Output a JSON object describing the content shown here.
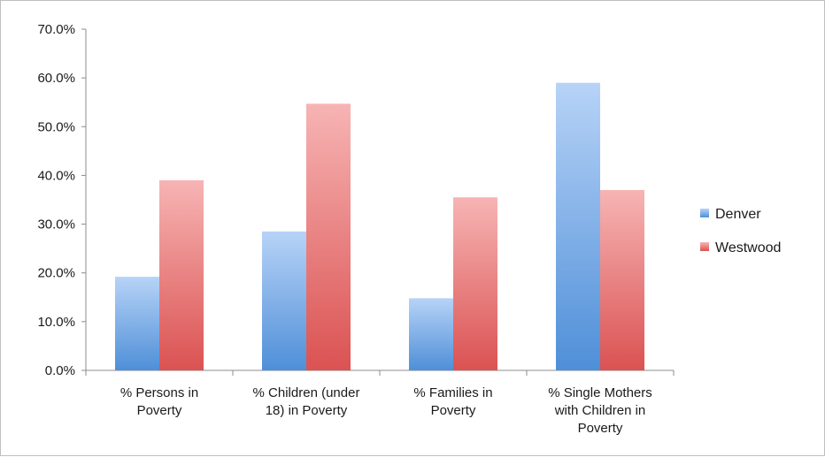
{
  "chart_data": {
    "type": "bar",
    "categories": [
      [
        "% Persons in",
        "Poverty"
      ],
      [
        "% Children (under",
        "18) in Poverty"
      ],
      [
        "% Families in",
        "Poverty"
      ],
      [
        "% Single Mothers",
        "with Children in",
        "Poverty"
      ]
    ],
    "series": [
      {
        "name": "Denver",
        "values": [
          19.2,
          28.5,
          14.8,
          59.0
        ],
        "color_top": "#b7d3f7",
        "color_bottom": "#4f8fd8"
      },
      {
        "name": "Westwood",
        "values": [
          39.0,
          54.7,
          35.5,
          37.0
        ],
        "color_top": "#f7b4b4",
        "color_bottom": "#db5252"
      }
    ],
    "y_ticks": [
      "0.0%",
      "10.0%",
      "20.0%",
      "30.0%",
      "40.0%",
      "50.0%",
      "60.0%",
      "70.0%"
    ],
    "ylim": [
      0,
      70
    ],
    "grid": false,
    "legend_position": "right"
  }
}
